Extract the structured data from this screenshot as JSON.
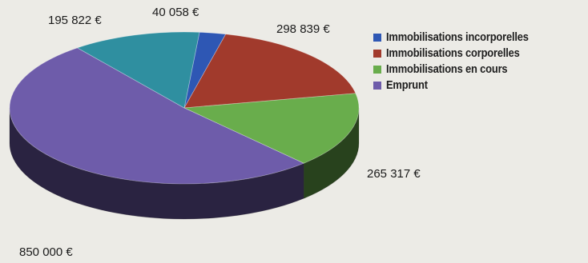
{
  "chart_data": {
    "type": "pie",
    "title": "",
    "legend_position": "right",
    "series": [
      {
        "name": "Immobilisations incorporelles",
        "value": 40058,
        "label": "40 058 €",
        "color": "#2e57b4"
      },
      {
        "name": "Immobilisations corporelles",
        "value": 298839,
        "label": "298 839 €",
        "color": "#a13a2c"
      },
      {
        "name": "Immobilisations en cours",
        "value": 265317,
        "label": "265 317 €",
        "color": "#69ad4c"
      },
      {
        "name": "Emprunt",
        "value": 850000,
        "label": "850 000 €",
        "color": "#6e5caa"
      },
      {
        "name": "",
        "value": 195822,
        "label": "195 822 €",
        "color": "#2f8fa0"
      }
    ]
  }
}
